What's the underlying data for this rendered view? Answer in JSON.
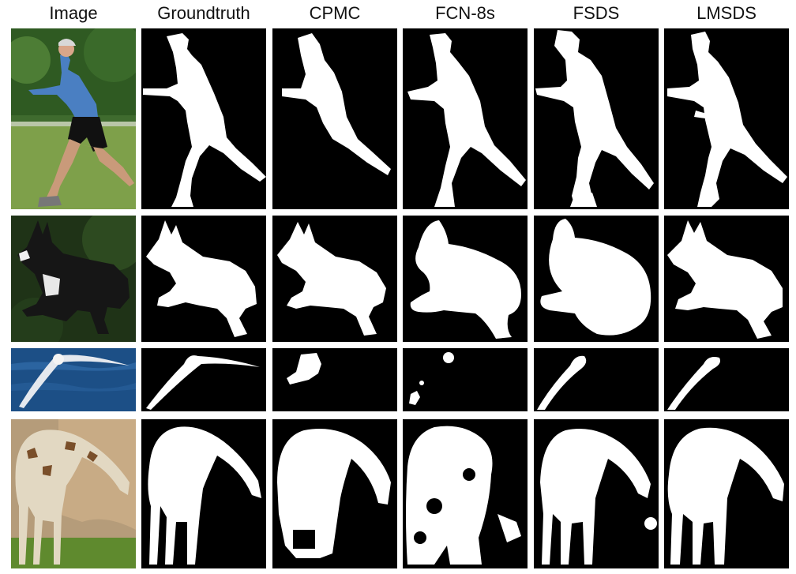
{
  "columns": [
    {
      "key": "image",
      "label": "Image"
    },
    {
      "key": "groundtruth",
      "label": "Groundtruth"
    },
    {
      "key": "cpmc",
      "label": "CPMC"
    },
    {
      "key": "fcn8s",
      "label": "FCN-8s"
    },
    {
      "key": "fsds",
      "label": "FSDS"
    },
    {
      "key": "lmsds",
      "label": "LMSDS"
    }
  ],
  "rows": [
    {
      "subject": "running-man"
    },
    {
      "subject": "leaping-dog"
    },
    {
      "subject": "flying-bird"
    },
    {
      "subject": "giraffe"
    }
  ],
  "colors": {
    "mask_fg": "#ffffff",
    "mask_bg": "#000000"
  }
}
